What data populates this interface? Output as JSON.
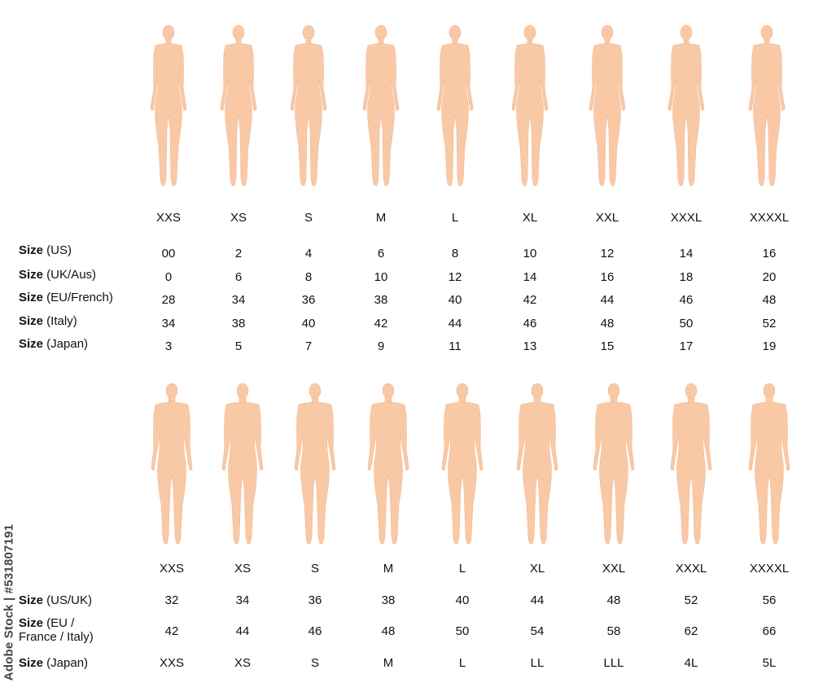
{
  "female": {
    "sizes": [
      "XXS",
      "XS",
      "S",
      "M",
      "L",
      "XL",
      "XXL",
      "XXXL",
      "XXXXL"
    ],
    "rows": [
      {
        "label_bold": "Size",
        "label_rest": " (US)",
        "values": [
          "00",
          "2",
          "4",
          "6",
          "8",
          "10",
          "12",
          "14",
          "16"
        ]
      },
      {
        "label_bold": "Size",
        "label_rest": " (UK/Aus)",
        "values": [
          "0",
          "6",
          "8",
          "10",
          "12",
          "14",
          "16",
          "18",
          "20"
        ]
      },
      {
        "label_bold": "Size",
        "label_rest": " (EU/French)",
        "values": [
          "28",
          "34",
          "36",
          "38",
          "40",
          "42",
          "44",
          "46",
          "48"
        ]
      },
      {
        "label_bold": "Size",
        "label_rest": " (Italy)",
        "values": [
          "34",
          "38",
          "40",
          "42",
          "44",
          "46",
          "48",
          "50",
          "52"
        ]
      },
      {
        "label_bold": "Size",
        "label_rest": " (Japan)",
        "values": [
          "3",
          "5",
          "7",
          "9",
          "11",
          "13",
          "15",
          "17",
          "19"
        ]
      }
    ]
  },
  "male": {
    "sizes": [
      "XXS",
      "XS",
      "S",
      "M",
      "L",
      "XL",
      "XXL",
      "XXXL",
      "XXXXL"
    ],
    "rows": [
      {
        "label_bold": "Size",
        "label_rest": " (US/UK)",
        "values": [
          "32",
          "34",
          "36",
          "38",
          "40",
          "44",
          "48",
          "52",
          "56"
        ]
      },
      {
        "label_bold": "Size",
        "label_rest": " (EU / France / Italy)",
        "values": [
          "42",
          "44",
          "46",
          "48",
          "50",
          "54",
          "58",
          "62",
          "66"
        ]
      },
      {
        "label_bold": "Size",
        "label_rest": " (Japan)",
        "values": [
          "XXS",
          "XS",
          "S",
          "M",
          "L",
          "LL",
          "LLL",
          "4L",
          "5L"
        ]
      }
    ]
  },
  "watermark": "Adobe Stock | #531807191",
  "colors": {
    "skin": "#f9c9a6",
    "skin_line": "#f0b894",
    "text": "#111111"
  },
  "icons": {
    "figure": "female-body-figure",
    "male_figure": "male-body-figure"
  }
}
